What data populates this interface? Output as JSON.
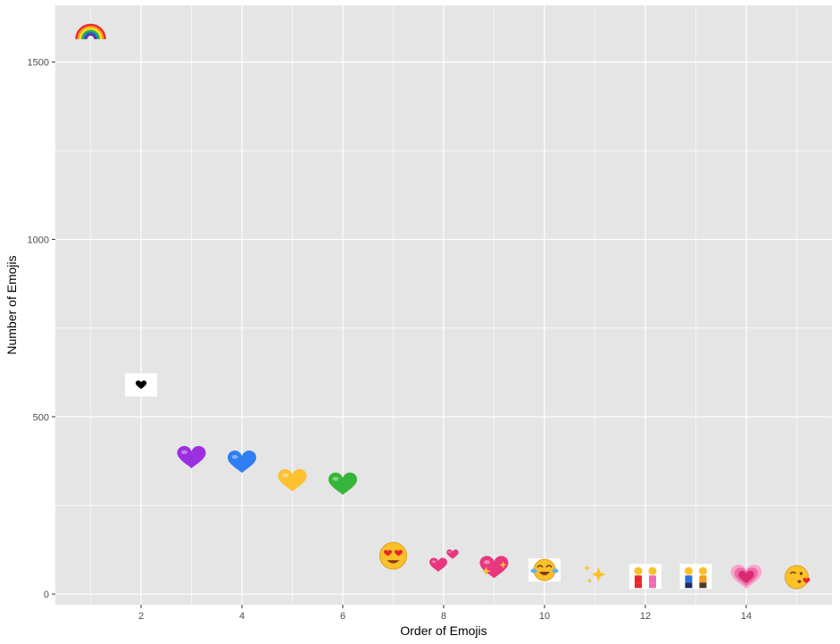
{
  "chart_data": {
    "type": "scatter",
    "title": "",
    "xlabel": "Order of Emojis",
    "ylabel": "Number of Emojis",
    "xlim": [
      0.3,
      15.7
    ],
    "ylim": [
      -30,
      1660
    ],
    "x_ticks": [
      2,
      4,
      6,
      8,
      10,
      12,
      14
    ],
    "y_ticks": [
      0,
      500,
      1000,
      1500
    ],
    "grid": true,
    "panel_background": "#e5e5e5",
    "grid_color": "#ffffff",
    "points": [
      {
        "x": 1,
        "y": 1590,
        "emoji": "rainbow"
      },
      {
        "x": 2,
        "y": 590,
        "emoji": "black-heart"
      },
      {
        "x": 3,
        "y": 385,
        "emoji": "purple-heart"
      },
      {
        "x": 4,
        "y": 372,
        "emoji": "blue-heart"
      },
      {
        "x": 5,
        "y": 320,
        "emoji": "yellow-heart"
      },
      {
        "x": 6,
        "y": 310,
        "emoji": "green-heart"
      },
      {
        "x": 7,
        "y": 108,
        "emoji": "smiling-face-heart-eyes"
      },
      {
        "x": 8,
        "y": 92,
        "emoji": "two-hearts"
      },
      {
        "x": 9,
        "y": 75,
        "emoji": "sparkling-heart"
      },
      {
        "x": 10,
        "y": 68,
        "emoji": "face-tears-of-joy"
      },
      {
        "x": 11,
        "y": 58,
        "emoji": "sparkles"
      },
      {
        "x": 12,
        "y": 50,
        "emoji": "women-holding-hands"
      },
      {
        "x": 13,
        "y": 50,
        "emoji": "men-holding-hands"
      },
      {
        "x": 14,
        "y": 48,
        "emoji": "growing-heart"
      },
      {
        "x": 15,
        "y": 48,
        "emoji": "face-blowing-kiss"
      }
    ],
    "colors": {
      "rainbow": [
        "#e8262b",
        "#f7941d",
        "#ffe21f",
        "#3ab54a",
        "#1b75bc",
        "#662d91"
      ],
      "purple": "#9b30e0",
      "blue": "#2f7ff2",
      "yellow": "#fdc02f",
      "green": "#35b53a",
      "pink": "#e8377f",
      "face": "#f9c12a",
      "sparkle": "#fbc02d"
    }
  }
}
